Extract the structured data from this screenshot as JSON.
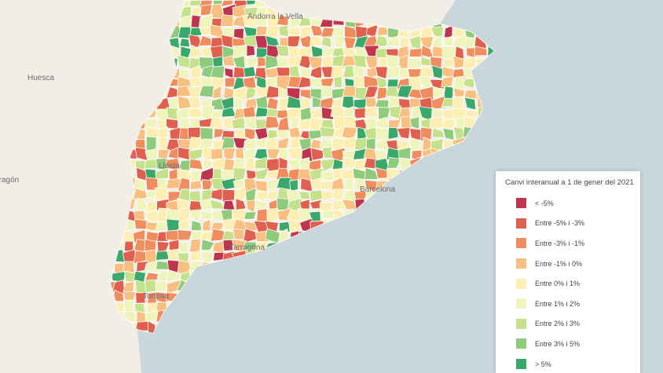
{
  "places": [
    "Huesca",
    "Aragón",
    "Lleida",
    "Tortosa",
    "Barcelona",
    "Tarragona",
    "Andorra la Vella"
  ],
  "legend": {
    "title": "Canvi interanual a 1 de gener del 2021",
    "items": [
      {
        "label": "< -5%",
        "color": "#bf3550"
      },
      {
        "label": "Entre -5% i -3%",
        "color": "#e0604f"
      },
      {
        "label": "Entre -3% i -1%",
        "color": "#f08d5e"
      },
      {
        "label": "Entre -1% i 0%",
        "color": "#f8bf80"
      },
      {
        "label": "Entre 0% i 1%",
        "color": "#fdefb3"
      },
      {
        "label": "Entre 1% i 2%",
        "color": "#eef4bb"
      },
      {
        "label": "Entre 2% i 3%",
        "color": "#c5e18c"
      },
      {
        "label": "Entre 3% i 5%",
        "color": "#8ecb7d"
      },
      {
        "label": "> 5%",
        "color": "#3ba86b"
      }
    ]
  }
}
